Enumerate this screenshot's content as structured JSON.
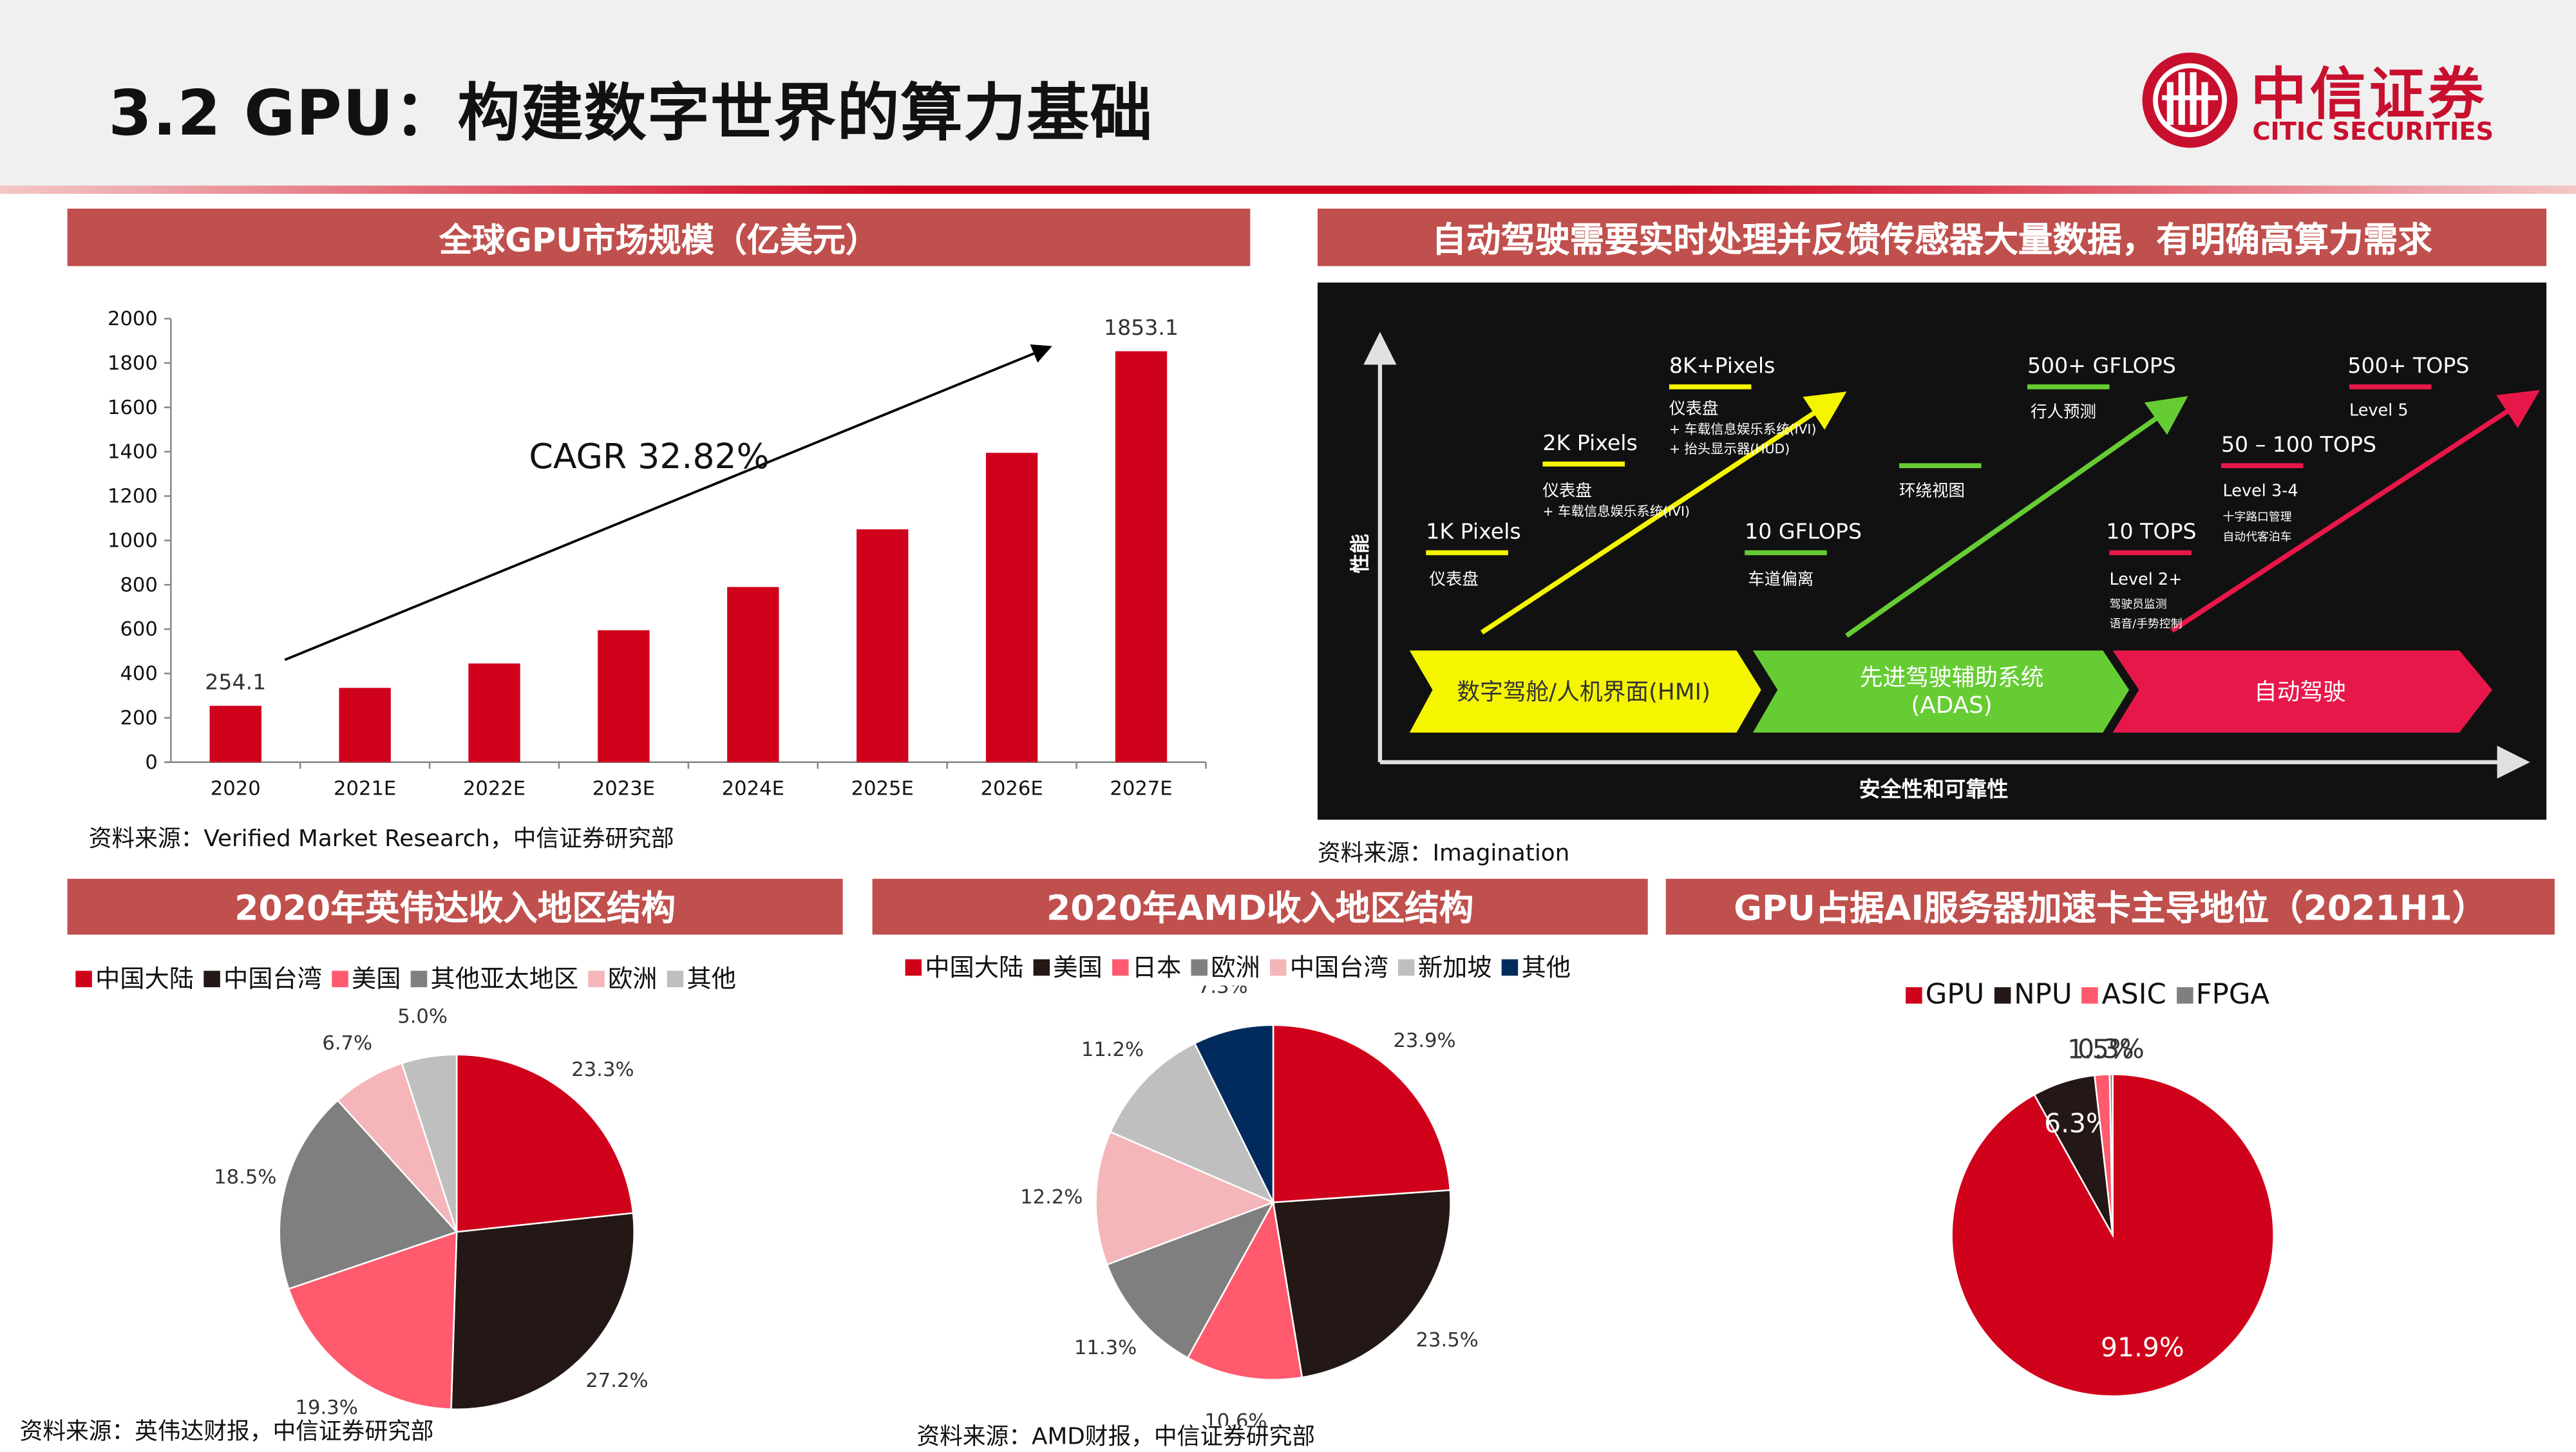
{
  "page_title": "3.2 GPU：构建数字世界的算力基础",
  "logo": {
    "cn": "中信证券",
    "en": "CITIC SECURITIES"
  },
  "colors": {
    "brand_red": "#c8102e",
    "section_bar": "#c0504d",
    "bar_red": "#d0021b"
  },
  "sections": {
    "market_title": "全球GPU市场规模（亿美元）",
    "auto_title": "自动驾驶需要实时处理并反馈传感器大量数据，有明确高算力需求",
    "nvidia_title": "2020年英伟达收入地区结构",
    "amd_title": "2020年AMD收入地区结构",
    "share_title": "GPU占据AI服务器加速卡主导地位（2021H1）"
  },
  "sources": {
    "market": "资料来源：Verified Market Research，中信证券研究部",
    "auto": "资料来源：Imagination",
    "nvidia": "资料来源：英伟达财报，中信证券研究部",
    "amd": "资料来源：AMD财报，中信证券研究部"
  },
  "auto_diagram": {
    "y_axis_label": "性能",
    "x_axis_label": "安全性和可靠性",
    "stages": [
      "数字驾舱/人机界面(HMI)",
      "先进驾驶辅助系统\n(ADAS)",
      "自动驾驶"
    ],
    "stage_colors": [
      "#f5f500",
      "#66cc33",
      "#e8174a"
    ],
    "labels": {
      "px1k": "1K Pixels",
      "px1k_sub": "仪表盘",
      "px2k": "2K Pixels",
      "px2k_sub": "仪表盘",
      "px2k_sub2": "+ 车载信息娱乐系统(IVI)",
      "px8k": "8K+Pixels",
      "px8k_sub": "仪表盘",
      "px8k_sub2": "+ 车载信息娱乐系统(IVI)",
      "px8k_sub3": "+ 抬头显示器(HUD)",
      "gf10": "10 GFLOPS",
      "gf10_sub": "车道偏离",
      "surround": "环绕视图",
      "gf500": "500+ GFLOPS",
      "gf500_sub": "行人预测",
      "tops10": "10 TOPS",
      "tops10_sub": "Level 2+",
      "tops10_sub2": "驾驶员监测",
      "tops10_sub3": "语音/手势控制",
      "tops50": "50 – 100 TOPS",
      "tops50_sub": "Level 3-4",
      "tops50_sub2": "十字路口管理",
      "tops50_sub3": "自动代客泊车",
      "tops500": "500+ TOPS",
      "tops500_sub": "Level 5"
    }
  },
  "chart_data": [
    {
      "type": "bar",
      "title": "全球GPU市场规模（亿美元）",
      "categories": [
        "2020",
        "2021E",
        "2022E",
        "2023E",
        "2024E",
        "2025E",
        "2026E",
        "2027E"
      ],
      "values": [
        254.1,
        335,
        445,
        595,
        790,
        1050,
        1395,
        1853.1
      ],
      "data_labels": [
        "254.1",
        "",
        "",
        "",
        "",
        "",
        "",
        "1853.1"
      ],
      "yticks": [
        "0",
        "200",
        "400",
        "600",
        "800",
        "1000",
        "1200",
        "1400",
        "1600",
        "1800",
        "2000"
      ],
      "ylim": [
        0,
        2000
      ],
      "annotation": "CAGR 32.82%",
      "xlabel": "",
      "ylabel": "",
      "color": "#d0021b"
    },
    {
      "type": "pie",
      "title": "2020年英伟达收入地区结构",
      "labels": [
        "中国大陆",
        "中国台湾",
        "美国",
        "其他亚太地区",
        "欧洲",
        "其他"
      ],
      "values": [
        23.3,
        27.2,
        19.3,
        18.5,
        6.7,
        5.0
      ],
      "value_labels": [
        "23.3%",
        "27.2%",
        "19.3%",
        "18.5%",
        "6.7%",
        "5.0%"
      ],
      "colors": [
        "#d0021b",
        "#231815",
        "#ff5a6e",
        "#7f7f7f",
        "#f4b6b9",
        "#bfbfbf"
      ]
    },
    {
      "type": "pie",
      "title": "2020年AMD收入地区结构",
      "labels": [
        "中国大陆",
        "美国",
        "日本",
        "欧洲",
        "中国台湾",
        "新加坡",
        "其他"
      ],
      "values": [
        23.9,
        23.5,
        10.6,
        11.3,
        12.2,
        11.2,
        7.3
      ],
      "value_labels": [
        "23.9%",
        "23.5%",
        "10.6%",
        "11.3%",
        "12.2%",
        "11.2%",
        "7.3%"
      ],
      "colors": [
        "#d0021b",
        "#231815",
        "#ff5a6e",
        "#7f7f7f",
        "#f4b6b9",
        "#bfbfbf",
        "#002b5c"
      ]
    },
    {
      "type": "pie",
      "title": "GPU占据AI服务器加速卡主导地位（2021H1）",
      "labels": [
        "GPU",
        "NPU",
        "ASIC",
        "FPGA"
      ],
      "values": [
        91.9,
        6.3,
        1.5,
        0.3
      ],
      "value_labels": [
        "91.9%",
        "6.3%",
        "1.5%",
        "0.3%"
      ],
      "colors": [
        "#d0021b",
        "#231815",
        "#ff5a6e",
        "#7f7f7f"
      ]
    }
  ]
}
